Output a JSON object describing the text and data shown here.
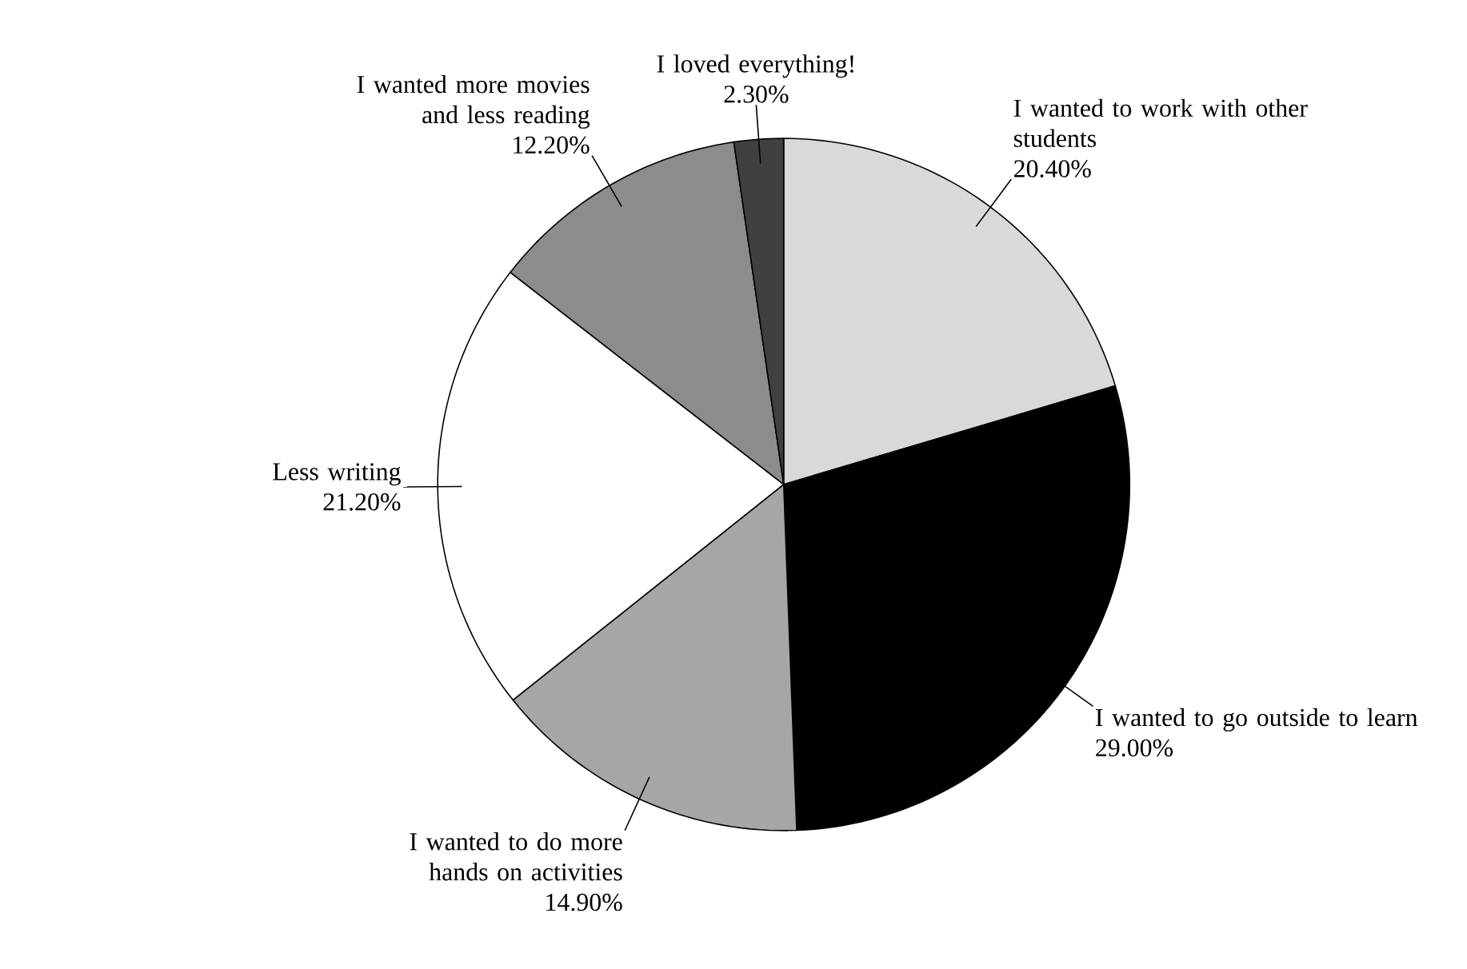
{
  "chart_data": {
    "type": "pie",
    "categories": [
      "I wanted to work with other students",
      "I wanted to go outside to learn",
      "I wanted to do more hands on activities",
      "Less writing",
      "I wanted more movies and less reading",
      "I loved everything!"
    ],
    "values": [
      20.4,
      29.0,
      14.9,
      21.2,
      12.2,
      2.3
    ],
    "value_labels": [
      "20.40%",
      "29.00%",
      "14.90%",
      "21.20%",
      "12.20%",
      "2.30%"
    ],
    "colors": [
      "#d9d9d9",
      "#000000",
      "#a6a6a6",
      "#ffffff",
      "#8c8c8c",
      "#404040"
    ]
  }
}
